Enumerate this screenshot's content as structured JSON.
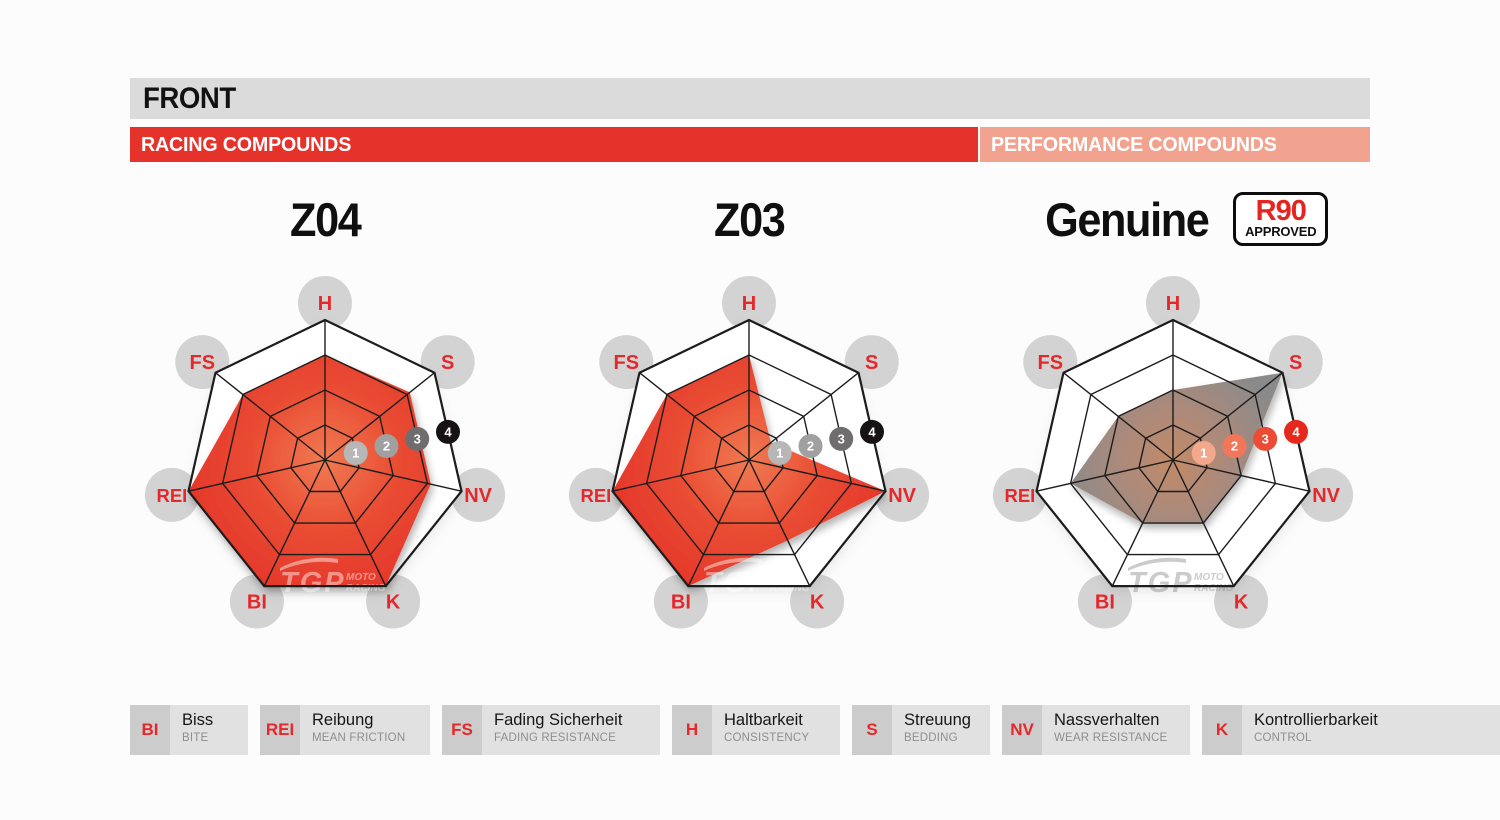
{
  "header": {
    "title": "FRONT",
    "racing_label": "RACING COMPOUNDS",
    "performance_label": "PERFORMANCE COMPOUNDS",
    "title_bar_color": "#dbdbdb",
    "racing_color": "#e5332c",
    "performance_color": "#f2a38f"
  },
  "watermark": {
    "brand": "TGP",
    "sub1": "MOTO",
    "sub2": "RACING"
  },
  "chart_style": {
    "axis_circle_color": "#d3d3d3",
    "axis_text_color": "#e5282c",
    "grid_color": "#1c1c1c",
    "inner_background": "#ffffff"
  },
  "chart_data": [
    {
      "type": "radar",
      "title": "Z04",
      "group": "RACING COMPOUNDS",
      "axes": [
        "H",
        "S",
        "NV",
        "K",
        "BI",
        "REI",
        "FS"
      ],
      "max": 4,
      "rings": [
        1,
        2,
        3,
        4
      ],
      "values": {
        "H": 3,
        "S": 3.1,
        "NV": 3.1,
        "K": 4,
        "BI": 4,
        "REI": 4,
        "FS": 3
      },
      "fill_gradient": [
        "#f07a52",
        "#e94b32",
        "#e4342a"
      ],
      "ring_badge_colors": [
        "#b7b7b7",
        "#a0a0a0",
        "#6f6d6e",
        "#171314"
      ],
      "watermark_color": "rgba(255,255,255,0.45)"
    },
    {
      "type": "radar",
      "title": "Z03",
      "group": "RACING COMPOUNDS",
      "axes": [
        "H",
        "S",
        "NV",
        "K",
        "BI",
        "REI",
        "FS"
      ],
      "max": 4,
      "rings": [
        1,
        2,
        3,
        4
      ],
      "values": {
        "H": 3,
        "S": 0.8,
        "NV": 4,
        "K": 2.55,
        "BI": 4,
        "REI": 4,
        "FS": 3
      },
      "fill_gradient": [
        "#f07a52",
        "#e94b32",
        "#e4342a"
      ],
      "ring_badge_colors": [
        "#b7b7b7",
        "#a0a0a0",
        "#6f6d6e",
        "#171314"
      ],
      "watermark_color": "rgba(255,255,255,0.45)"
    },
    {
      "type": "radar",
      "title": "Genuine",
      "group": "PERFORMANCE COMPOUNDS",
      "approval": {
        "line1": "R90",
        "line2": "APPROVED"
      },
      "axes": [
        "H",
        "S",
        "NV",
        "K",
        "BI",
        "REI",
        "FS"
      ],
      "max": 4,
      "rings": [
        1,
        2,
        3,
        4
      ],
      "values": {
        "H": 2,
        "S": 4,
        "NV": 2,
        "K": 2,
        "BI": 2,
        "REI": 3,
        "FS": 2
      },
      "fill_gradient": [
        "#c28a68",
        "#aa8a7c",
        "#8a8a8a"
      ],
      "ring_badge_colors": [
        "#f3a78d",
        "#f3765a",
        "#ec4c33",
        "#e52a1d"
      ],
      "watermark_color": "rgba(125,125,125,0.4)"
    }
  ],
  "legend": {
    "items": [
      {
        "abbr": "BI",
        "term": "Biss",
        "translation": "BITE"
      },
      {
        "abbr": "REI",
        "term": "Reibung",
        "translation": "MEAN FRICTION"
      },
      {
        "abbr": "FS",
        "term": "Fading Sicherheit",
        "translation": "FADING RESISTANCE"
      },
      {
        "abbr": "H",
        "term": "Haltbarkeit",
        "translation": "CONSISTENCY"
      },
      {
        "abbr": "S",
        "term": "Streuung",
        "translation": "BEDDING"
      },
      {
        "abbr": "NV",
        "term": "Nassverhalten",
        "translation": "WEAR RESISTANCE"
      },
      {
        "abbr": "K",
        "term": "Kontrollierbarkeit",
        "translation": "CONTROL"
      }
    ]
  }
}
